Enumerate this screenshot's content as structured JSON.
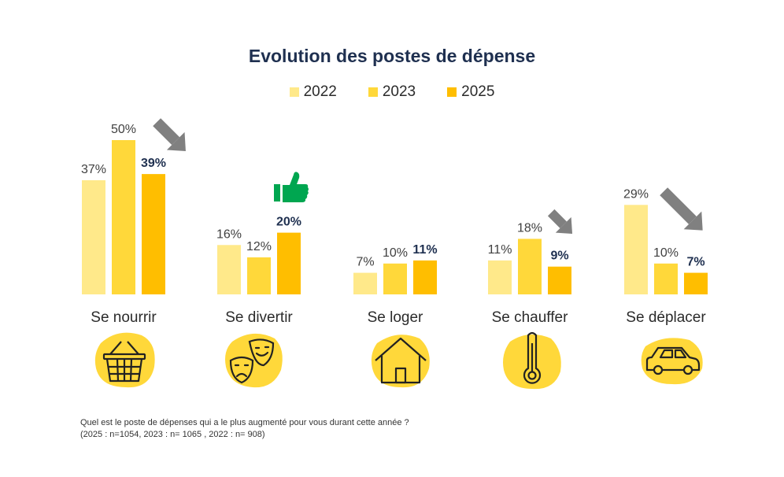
{
  "chart_data": {
    "type": "bar",
    "title": "Evolution des postes de dépense",
    "categories": [
      "Se nourrir",
      "Se divertir",
      "Se loger",
      "Se chauffer",
      "Se déplacer"
    ],
    "series": [
      {
        "name": "2022",
        "values": [
          37,
          16,
          7,
          11,
          29
        ],
        "labels": [
          "37%",
          "16%",
          "7%",
          "11%",
          "29%"
        ]
      },
      {
        "name": "2023",
        "values": [
          50,
          12,
          10,
          18,
          10
        ],
        "labels": [
          "50%",
          "12%",
          "10%",
          "18%",
          "10%"
        ]
      },
      {
        "name": "2025",
        "values": [
          39,
          20,
          11,
          9,
          7
        ],
        "labels": [
          "39%",
          "20%",
          "11%",
          "9%",
          "7%"
        ]
      }
    ],
    "unit": "%",
    "ylim": [
      0,
      50
    ],
    "grid": false,
    "legend_position": "top",
    "highlighted_series": "2025",
    "trend_markers": [
      "arrow-down",
      "thumbs-up",
      "none",
      "arrow-down",
      "arrow-down"
    ]
  },
  "colors": {
    "2022": "#ffe98a",
    "2023": "#ffd83a",
    "2025": "#ffbe00",
    "icon_blob": "#ffd83a",
    "arrow": "#808080",
    "thumb": "#00a650",
    "title": "#1f3050"
  },
  "category_icons": [
    "basket-icon",
    "theater-masks-icon",
    "house-icon",
    "thermometer-icon",
    "car-icon"
  ],
  "footnote": {
    "question": "Quel est le poste de dépenses qui a le plus augmenté pour vous durant cette année ?",
    "sample": "(2025 : n=1054, 2023 : n= 1065 , 2022 : n= 908)"
  }
}
